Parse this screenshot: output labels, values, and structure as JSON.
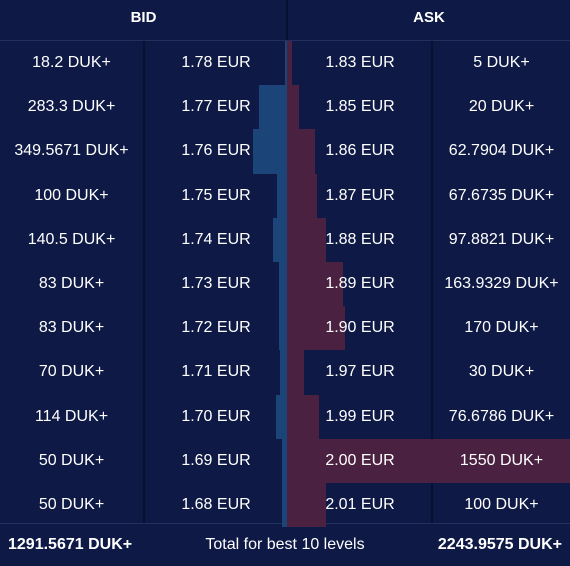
{
  "header": {
    "bid_label": "BID",
    "ask_label": "ASK"
  },
  "colors": {
    "background": "#0e1a45",
    "bid_bar": "#1b4479",
    "ask_bar": "#4a2140",
    "separator": "#07102e"
  },
  "rows": [
    {
      "bid_qty": "18.2 DUK+",
      "bid_price": "1.78 EUR",
      "ask_price": "1.83 EUR",
      "ask_qty": "5 DUK+",
      "bid_depth": 18.2,
      "ask_depth": 5
    },
    {
      "bid_qty": "283.3 DUK+",
      "bid_price": "1.77 EUR",
      "ask_price": "1.85 EUR",
      "ask_qty": "20 DUK+",
      "bid_depth": 283.3,
      "ask_depth": 20
    },
    {
      "bid_qty": "349.5671 DUK+",
      "bid_price": "1.76 EUR",
      "ask_price": "1.86 EUR",
      "ask_qty": "62.7904 DUK+",
      "bid_depth": 349.5671,
      "ask_depth": 62.7904
    },
    {
      "bid_qty": "100 DUK+",
      "bid_price": "1.75 EUR",
      "ask_price": "1.87 EUR",
      "ask_qty": "67.6735 DUK+",
      "bid_depth": 100,
      "ask_depth": 67.6735
    },
    {
      "bid_qty": "140.5 DUK+",
      "bid_price": "1.74 EUR",
      "ask_price": "1.88 EUR",
      "ask_qty": "97.8821 DUK+",
      "bid_depth": 140.5,
      "ask_depth": 97.8821
    },
    {
      "bid_qty": "83 DUK+",
      "bid_price": "1.73 EUR",
      "ask_price": "1.89 EUR",
      "ask_qty": "163.9329 DUK+",
      "bid_depth": 83,
      "ask_depth": 163.9329
    },
    {
      "bid_qty": "83 DUK+",
      "bid_price": "1.72 EUR",
      "ask_price": "1.90 EUR",
      "ask_qty": "170 DUK+",
      "bid_depth": 83,
      "ask_depth": 170
    },
    {
      "bid_qty": "70 DUK+",
      "bid_price": "1.71 EUR",
      "ask_price": "1.97 EUR",
      "ask_qty": "30 DUK+",
      "bid_depth": 70,
      "ask_depth": 30
    },
    {
      "bid_qty": "114 DUK+",
      "bid_price": "1.70 EUR",
      "ask_price": "1.99 EUR",
      "ask_qty": "76.6786 DUK+",
      "bid_depth": 114,
      "ask_depth": 76.6786
    },
    {
      "bid_qty": "50 DUK+",
      "bid_price": "1.69 EUR",
      "ask_price": "2.00 EUR",
      "ask_qty": "1550 DUK+",
      "bid_depth": 50,
      "ask_depth": 1550
    },
    {
      "bid_qty": "50 DUK+",
      "bid_price": "1.68 EUR",
      "ask_price": "2.01 EUR",
      "ask_qty": "100 DUK+",
      "bid_depth": 50,
      "ask_depth": 100
    }
  ],
  "footer": {
    "bid_total": "1291.5671 DUK+",
    "label": "Total for best 10 levels",
    "ask_total": "2243.9575 DUK+"
  }
}
